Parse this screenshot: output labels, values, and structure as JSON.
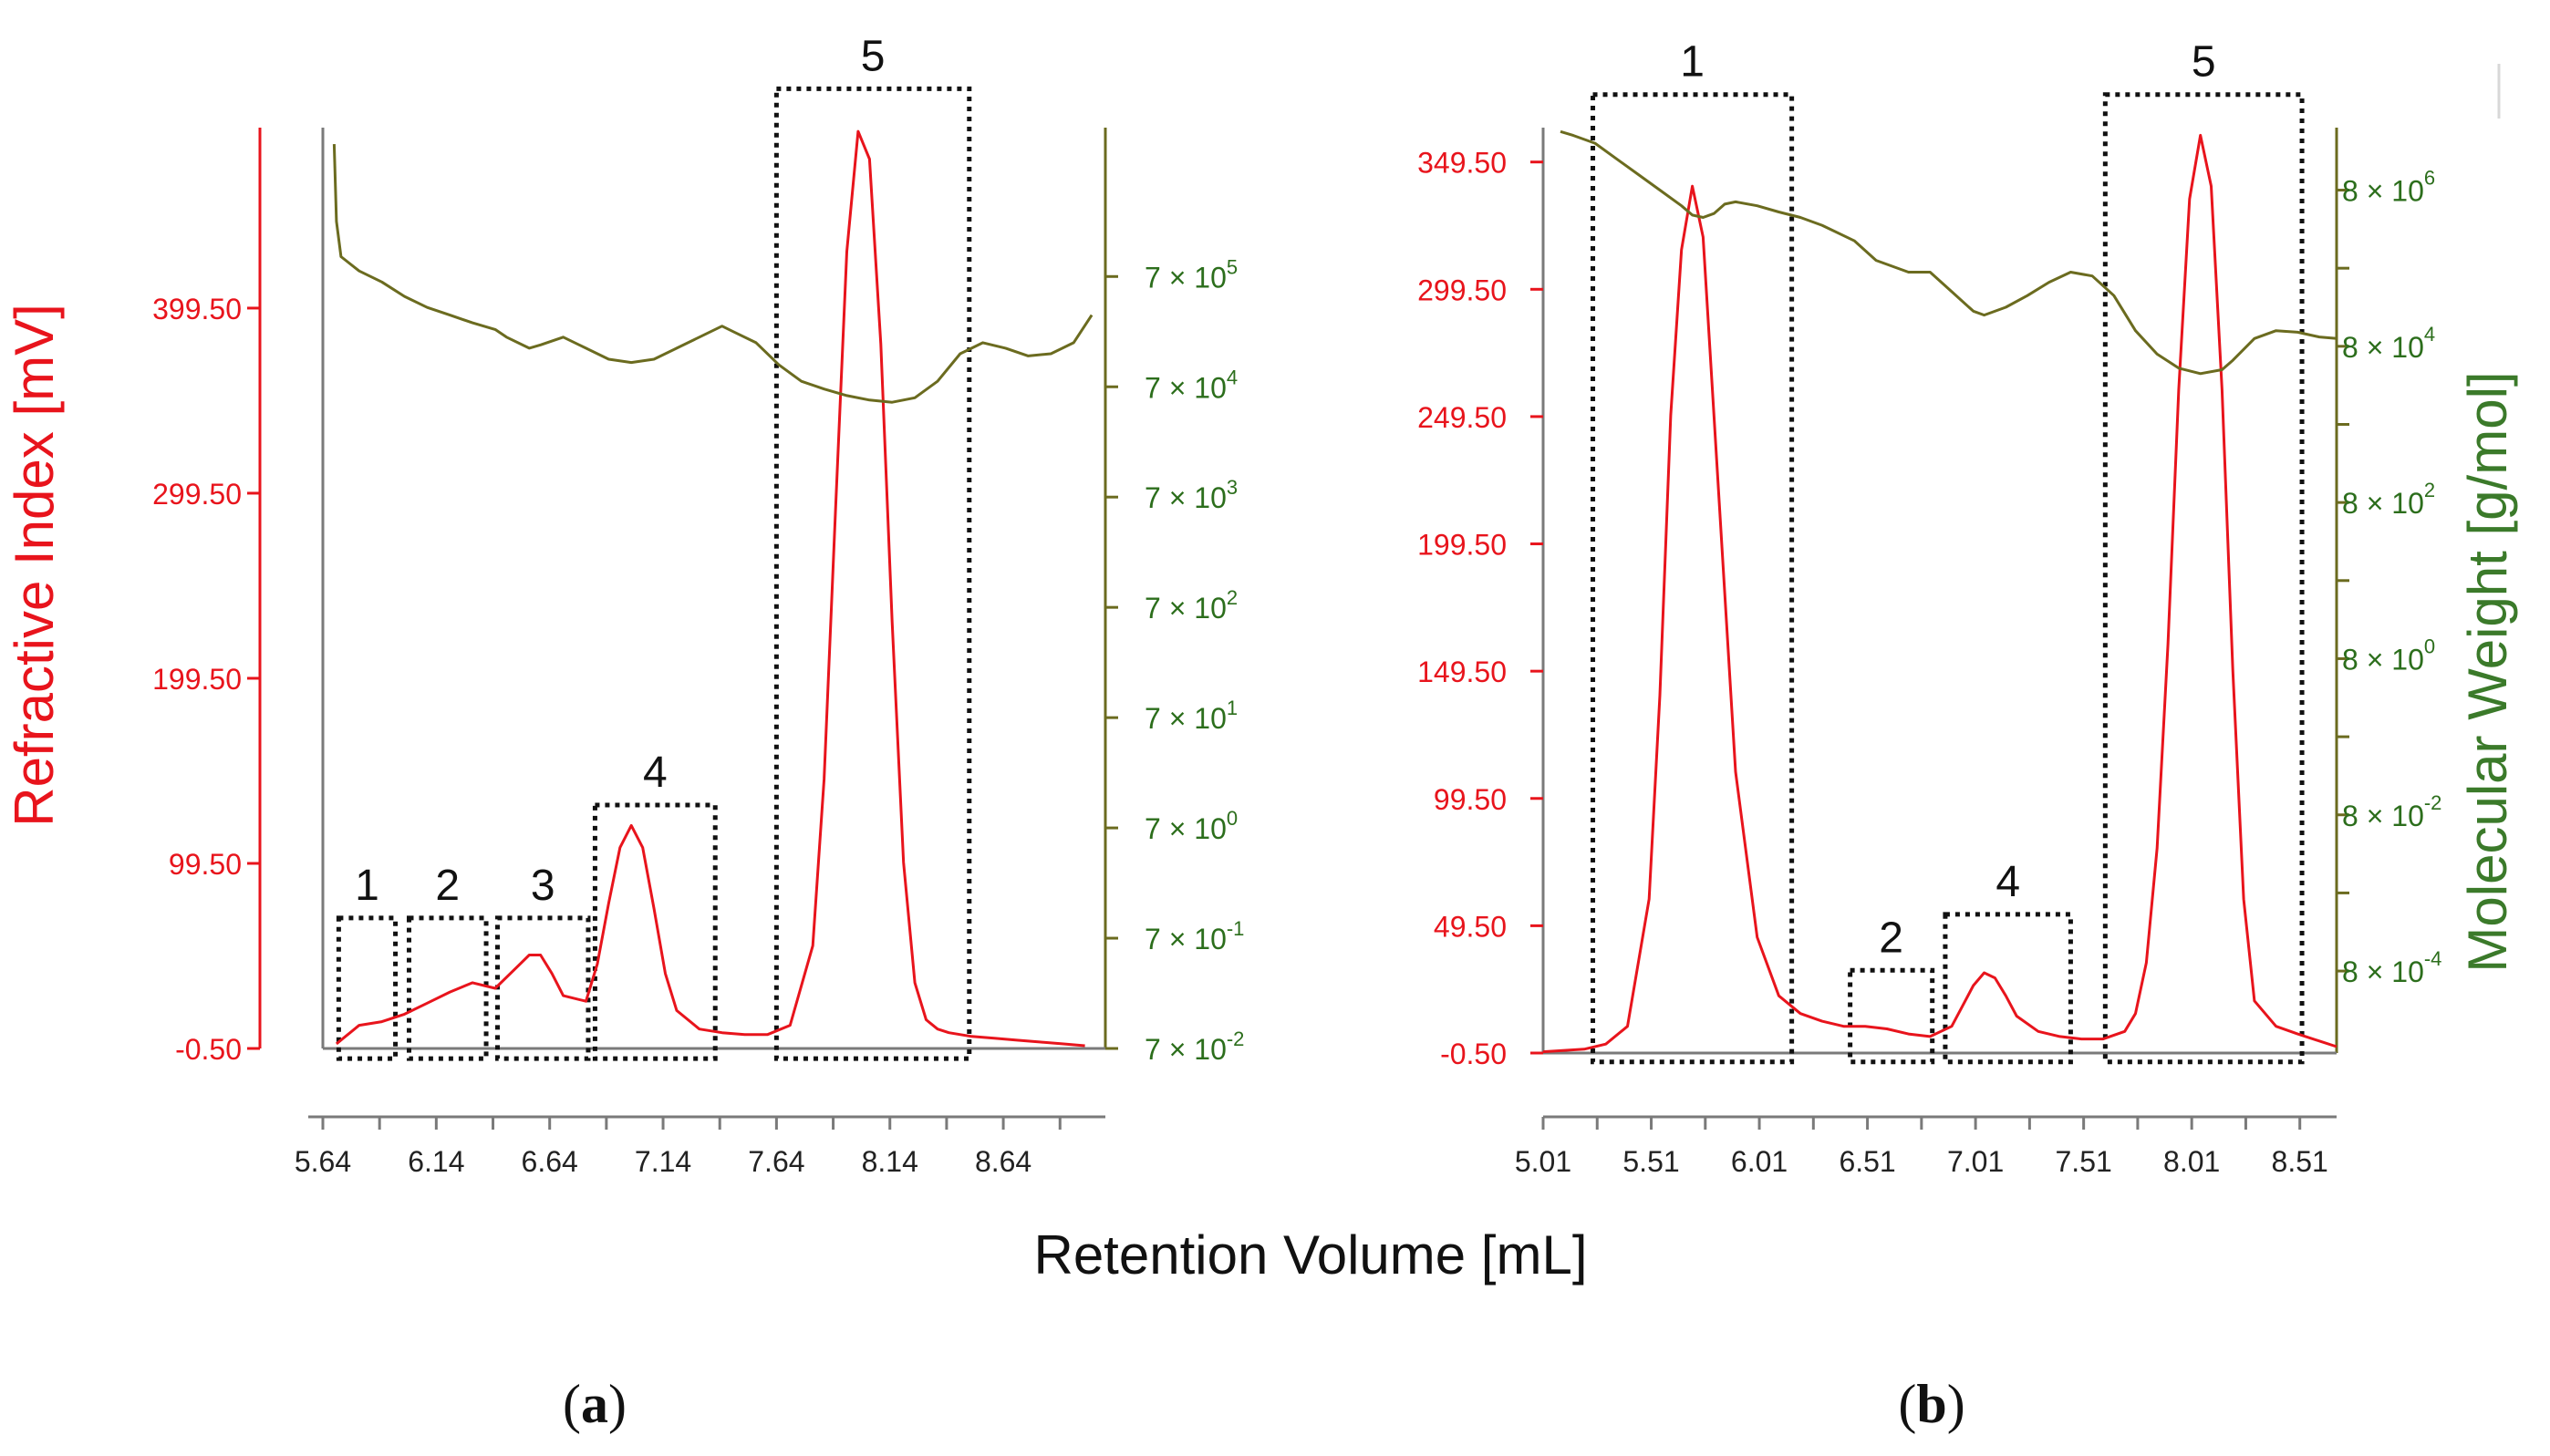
{
  "figure": {
    "shared_xlabel": "Retention Volume [mL]",
    "left_axis_title": "Refractive Index [mV]",
    "right_axis_title": "Molecular Weight [g/mol]",
    "colors": {
      "ri": "#e8141c",
      "mw_line": "#6b6b1f",
      "mw_ticks": "#2c6e1c",
      "mw_title": "#3b7a2a",
      "axis": "#7a7a7a",
      "box": "#111111"
    }
  },
  "chart_data": [
    {
      "type": "line",
      "panel_label": "(a)",
      "panel_letter": "a",
      "xlim": [
        5.64,
        9.09
      ],
      "x_ticks": [
        "5.64",
        "6.14",
        "6.64",
        "7.14",
        "7.64",
        "8.14",
        "8.64"
      ],
      "x_tick_values": [
        5.64,
        6.14,
        6.64,
        7.14,
        7.64,
        8.14,
        8.64
      ],
      "y_left": {
        "label": "Refractive Index [mV]",
        "range": [
          -0.5,
          497
        ],
        "ticks": [
          "-0.50",
          "99.50",
          "199.50",
          "299.50",
          "399.50"
        ],
        "tick_values": [
          -0.5,
          99.5,
          199.5,
          299.5,
          399.5
        ]
      },
      "y_right": {
        "label": "Molecular Weight [g/mol]",
        "scale": "log",
        "ticks": [
          {
            "coef": "7 × 10",
            "exp": "5"
          },
          {
            "coef": "7 × 10",
            "exp": "4"
          },
          {
            "coef": "7 × 10",
            "exp": "3"
          },
          {
            "coef": "7 × 10",
            "exp": "2"
          },
          {
            "coef": "7 × 10",
            "exp": "1"
          },
          {
            "coef": "7 × 10",
            "exp": "0"
          },
          {
            "coef": "7 × 10",
            "exp": "-1"
          },
          {
            "coef": "7 × 10",
            "exp": "-2"
          }
        ],
        "tick_log_values": [
          5,
          4,
          3,
          2,
          1,
          0,
          -1,
          -2
        ],
        "range_log": [
          -2,
          6.35
        ]
      },
      "series": [
        {
          "name": "Refractive Index",
          "x": [
            5.7,
            5.8,
            5.9,
            6.0,
            6.1,
            6.2,
            6.3,
            6.4,
            6.5,
            6.55,
            6.6,
            6.65,
            6.7,
            6.8,
            6.85,
            6.9,
            6.95,
            7.0,
            7.05,
            7.1,
            7.15,
            7.2,
            7.3,
            7.4,
            7.5,
            7.6,
            7.7,
            7.8,
            7.85,
            7.9,
            7.95,
            8.0,
            8.05,
            8.1,
            8.15,
            8.2,
            8.25,
            8.3,
            8.35,
            8.4,
            8.5,
            8.6,
            8.7,
            8.8,
            8.9,
            9.0
          ],
          "values": [
            2,
            12,
            14,
            18,
            24,
            30,
            35,
            32,
            44,
            50,
            50,
            40,
            28,
            25,
            45,
            78,
            108,
            120,
            108,
            75,
            40,
            20,
            10,
            8,
            7,
            7,
            12,
            55,
            145,
            290,
            430,
            495,
            480,
            380,
            230,
            100,
            35,
            15,
            10,
            8,
            6,
            5,
            4,
            3,
            2,
            1
          ]
        },
        {
          "name": "Molecular Weight",
          "x": [
            5.69,
            5.7,
            5.72,
            5.8,
            5.9,
            6.0,
            6.1,
            6.2,
            6.3,
            6.4,
            6.45,
            6.55,
            6.6,
            6.7,
            6.8,
            6.9,
            7.0,
            7.1,
            7.2,
            7.3,
            7.4,
            7.45,
            7.55,
            7.65,
            7.75,
            7.85,
            7.95,
            8.05,
            8.15,
            8.25,
            8.35,
            8.45,
            8.55,
            8.65,
            8.75,
            8.85,
            8.95,
            9.03
          ],
          "log_values": [
            6.2,
            5.5,
            5.18,
            5.05,
            4.95,
            4.82,
            4.72,
            4.65,
            4.58,
            4.52,
            4.45,
            4.35,
            4.38,
            4.45,
            4.35,
            4.25,
            4.22,
            4.25,
            4.35,
            4.45,
            4.55,
            4.5,
            4.4,
            4.2,
            4.05,
            3.98,
            3.92,
            3.88,
            3.86,
            3.9,
            4.05,
            4.3,
            4.4,
            4.35,
            4.28,
            4.3,
            4.4,
            4.65
          ]
        }
      ],
      "annotations": [
        {
          "label": "1",
          "x_range": [
            5.71,
            5.96
          ],
          "y_range": [
            -6,
            70
          ]
        },
        {
          "label": "2",
          "x_range": [
            6.02,
            6.36
          ],
          "y_range": [
            -6,
            70
          ]
        },
        {
          "label": "3",
          "x_range": [
            6.41,
            6.81
          ],
          "y_range": [
            -6,
            70
          ]
        },
        {
          "label": "4",
          "x_range": [
            6.84,
            7.37
          ],
          "y_range": [
            -6,
            131
          ]
        },
        {
          "label": "5",
          "x_range": [
            7.64,
            8.49
          ],
          "y_range": [
            -6,
            518
          ]
        }
      ]
    },
    {
      "type": "line",
      "panel_label": "(b)",
      "panel_letter": "b",
      "xlim": [
        5.01,
        8.68
      ],
      "x_ticks": [
        "5.01",
        "5.51",
        "6.01",
        "6.51",
        "7.01",
        "7.51",
        "8.01",
        "8.51"
      ],
      "x_tick_values": [
        5.01,
        5.51,
        6.01,
        6.51,
        7.01,
        7.51,
        8.01,
        8.51
      ],
      "y_left": {
        "label": "Refractive Index [mV]",
        "range": [
          -0.5,
          363
        ],
        "ticks": [
          "-0.50",
          "49.50",
          "99.50",
          "149.50",
          "199.50",
          "249.50",
          "299.50",
          "349.50"
        ],
        "tick_values": [
          -0.5,
          49.5,
          99.5,
          149.5,
          199.5,
          249.5,
          299.5,
          349.5
        ]
      },
      "y_right": {
        "label": "Molecular Weight [g/mol]",
        "scale": "log",
        "ticks": [
          {
            "coef": "8 × 10",
            "exp": "6"
          },
          {
            "coef": "8 × 10",
            "exp": "4"
          },
          {
            "coef": "8 × 10",
            "exp": "2"
          },
          {
            "coef": "8 × 10",
            "exp": "0"
          },
          {
            "coef": "8 × 10",
            "exp": "-2"
          },
          {
            "coef": "8 × 10",
            "exp": "-4"
          }
        ],
        "tick_log_values": [
          6,
          4,
          2,
          0,
          -2,
          -4
        ],
        "range_log": [
          -5.05,
          6.8
        ]
      },
      "series": [
        {
          "name": "Refractive Index",
          "x": [
            5.01,
            5.2,
            5.3,
            5.4,
            5.5,
            5.55,
            5.6,
            5.65,
            5.7,
            5.75,
            5.8,
            5.9,
            6.0,
            6.1,
            6.2,
            6.3,
            6.4,
            6.5,
            6.6,
            6.7,
            6.8,
            6.9,
            6.95,
            7.0,
            7.05,
            7.1,
            7.15,
            7.2,
            7.3,
            7.4,
            7.5,
            7.6,
            7.7,
            7.75,
            7.8,
            7.85,
            7.9,
            7.95,
            8.0,
            8.05,
            8.1,
            8.15,
            8.2,
            8.25,
            8.3,
            8.4,
            8.5,
            8.68
          ],
          "values": [
            0,
            1,
            3,
            10,
            60,
            140,
            250,
            315,
            340,
            320,
            250,
            110,
            45,
            22,
            15,
            12,
            10,
            10,
            9,
            7,
            6,
            10,
            18,
            26,
            31,
            29,
            22,
            14,
            8,
            6,
            5,
            5,
            8,
            15,
            35,
            80,
            160,
            260,
            335,
            360,
            340,
            260,
            150,
            60,
            20,
            10,
            7,
            2
          ]
        },
        {
          "name": "Molecular Weight",
          "x": [
            5.09,
            5.15,
            5.25,
            5.35,
            5.45,
            5.55,
            5.65,
            5.7,
            5.75,
            5.8,
            5.85,
            5.9,
            6.0,
            6.1,
            6.2,
            6.3,
            6.45,
            6.55,
            6.7,
            6.8,
            6.9,
            7.0,
            7.05,
            7.15,
            7.25,
            7.35,
            7.45,
            7.55,
            7.65,
            7.75,
            7.85,
            7.95,
            8.05,
            8.15,
            8.2,
            8.3,
            8.4,
            8.5,
            8.6,
            8.68
          ],
          "log_values": [
            6.75,
            6.7,
            6.6,
            6.4,
            6.2,
            6.0,
            5.8,
            5.68,
            5.65,
            5.7,
            5.82,
            5.85,
            5.8,
            5.72,
            5.65,
            5.55,
            5.35,
            5.1,
            4.95,
            4.95,
            4.7,
            4.45,
            4.4,
            4.5,
            4.65,
            4.82,
            4.95,
            4.9,
            4.65,
            4.2,
            3.9,
            3.72,
            3.65,
            3.7,
            3.82,
            4.1,
            4.2,
            4.18,
            4.12,
            4.1
          ]
        }
      ],
      "annotations": [
        {
          "label": "1",
          "x_range": [
            5.24,
            6.16
          ],
          "y_range": [
            -4,
            376
          ]
        },
        {
          "label": "2",
          "x_range": [
            6.43,
            6.81
          ],
          "y_range": [
            -4,
            32
          ]
        },
        {
          "label": "4",
          "x_range": [
            6.87,
            7.45
          ],
          "y_range": [
            -4,
            54
          ]
        },
        {
          "label": "5",
          "x_range": [
            7.61,
            8.52
          ],
          "y_range": [
            -4,
            376
          ]
        }
      ]
    }
  ]
}
